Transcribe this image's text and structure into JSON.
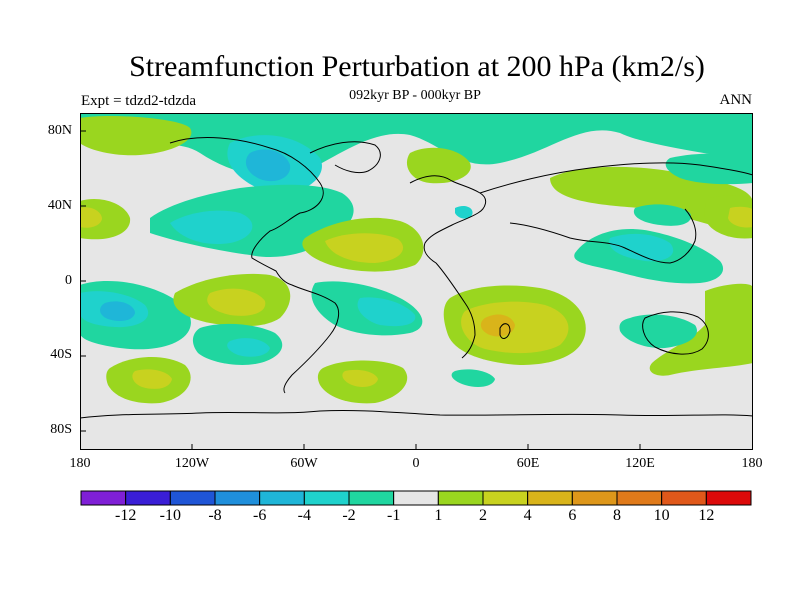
{
  "title": "Streamfunction Perturbation at 200 hPa (km2/s)",
  "subtitle": "092kyr BP - 000kyr BP",
  "experiment": "Expt = tdzd2-tdzda",
  "season": "ANN",
  "lat_labels": [
    "80N",
    "40N",
    "0",
    "40S",
    "80S"
  ],
  "lon_labels": [
    "180",
    "120W",
    "60W",
    "0",
    "60E",
    "120E",
    "180"
  ],
  "colors": {
    "c_m12": "#7f1fd6",
    "c_m10": "#3a1ed6",
    "c_m8": "#1f55d6",
    "c_m6": "#1f8fdb",
    "c_m4": "#1fb6d8",
    "c_m2": "#1fd2cc",
    "c_m1": "#20d6a0",
    "c_0": "#e6e6e6",
    "c_1": "#9ad61f",
    "c_2": "#c8d21f",
    "c_4": "#d9b41a",
    "c_6": "#de971a",
    "c_8": "#e07a1a",
    "c_10": "#e0581a",
    "c_12": "#dc0a0a"
  },
  "colorbar": {
    "colors": [
      "#7f1fd6",
      "#3a1ed6",
      "#1f55d6",
      "#1f8fdb",
      "#1fb6d8",
      "#1fd2cc",
      "#20d6a0",
      "#e6e6e6",
      "#9ad61f",
      "#c8d21f",
      "#d9b41a",
      "#de971a",
      "#e07a1a",
      "#e0581a",
      "#dc0a0a"
    ],
    "labels": [
      "-12",
      "-10",
      "-8",
      "-6",
      "-4",
      "-2",
      "-1",
      "1",
      "2",
      "4",
      "6",
      "8",
      "10",
      "12"
    ]
  }
}
